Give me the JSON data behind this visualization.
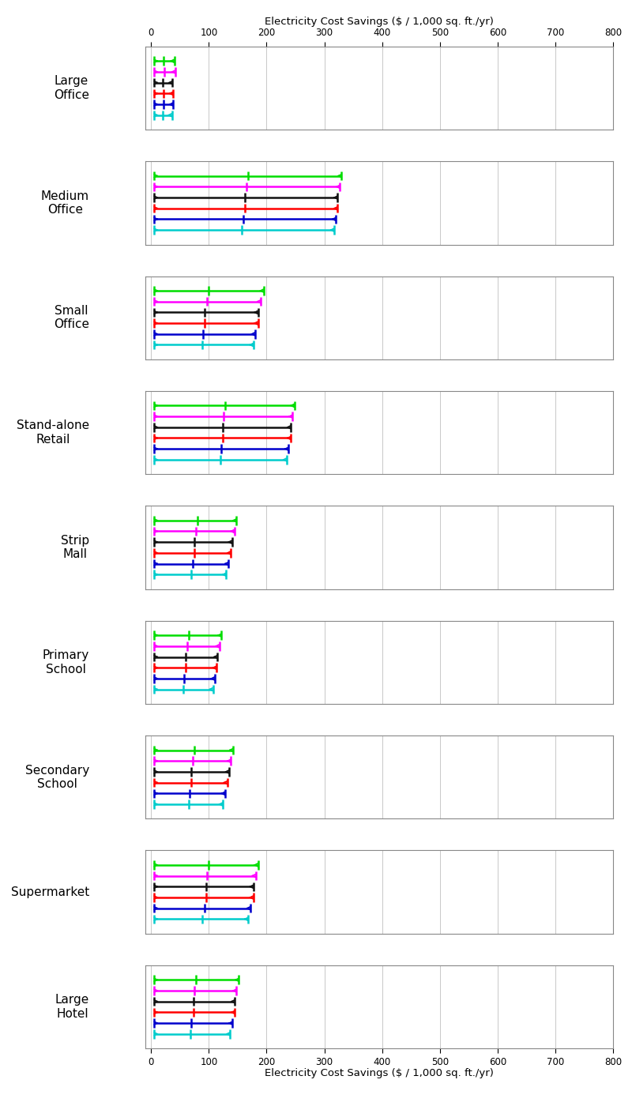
{
  "xlabel": "Electricity Cost Savings ($ / 1,000 sq. ft./yr)",
  "xlim": [
    -10,
    800
  ],
  "xticks": [
    0,
    100,
    200,
    300,
    400,
    500,
    600,
    700,
    800
  ],
  "xticklabels": [
    "0",
    "100",
    "200",
    "300",
    "400",
    "500",
    "600",
    "700",
    "800"
  ],
  "colors": [
    "#00dd00",
    "#ff00ff",
    "#111111",
    "#ff0000",
    "#0000cc",
    "#00cccc"
  ],
  "building_types": [
    "Large\nOffice",
    "Medium\nOffice",
    "Small\nOffice",
    "Stand-alone\nRetail",
    "Strip\nMall",
    "Primary\nSchool",
    "Secondary\nSchool",
    "Supermarket",
    "Large\nHotel"
  ],
  "series_data": [
    [
      [
        5,
        22,
        40
      ],
      [
        5,
        23,
        42
      ],
      [
        5,
        20,
        37
      ],
      [
        5,
        21,
        38
      ],
      [
        5,
        21,
        38
      ],
      [
        5,
        20,
        36
      ]
    ],
    [
      [
        5,
        168,
        330
      ],
      [
        5,
        165,
        327
      ],
      [
        5,
        162,
        323
      ],
      [
        5,
        162,
        323
      ],
      [
        5,
        160,
        320
      ],
      [
        5,
        157,
        317
      ]
    ],
    [
      [
        5,
        100,
        195
      ],
      [
        5,
        97,
        190
      ],
      [
        5,
        93,
        185
      ],
      [
        5,
        93,
        185
      ],
      [
        5,
        90,
        180
      ],
      [
        5,
        88,
        177
      ]
    ],
    [
      [
        5,
        128,
        248
      ],
      [
        5,
        126,
        245
      ],
      [
        5,
        124,
        242
      ],
      [
        5,
        124,
        242
      ],
      [
        5,
        122,
        238
      ],
      [
        5,
        120,
        235
      ]
    ],
    [
      [
        5,
        80,
        148
      ],
      [
        5,
        78,
        144
      ],
      [
        5,
        75,
        140
      ],
      [
        5,
        75,
        138
      ],
      [
        5,
        72,
        134
      ],
      [
        5,
        70,
        130
      ]
    ],
    [
      [
        5,
        65,
        122
      ],
      [
        5,
        62,
        118
      ],
      [
        5,
        60,
        115
      ],
      [
        5,
        60,
        113
      ],
      [
        5,
        57,
        110
      ],
      [
        5,
        55,
        107
      ]
    ],
    [
      [
        5,
        75,
        142
      ],
      [
        5,
        72,
        138
      ],
      [
        5,
        70,
        135
      ],
      [
        5,
        70,
        132
      ],
      [
        5,
        67,
        128
      ],
      [
        5,
        65,
        124
      ]
    ],
    [
      [
        5,
        100,
        185
      ],
      [
        5,
        97,
        181
      ],
      [
        5,
        95,
        177
      ],
      [
        5,
        95,
        177
      ],
      [
        5,
        92,
        172
      ],
      [
        5,
        89,
        168
      ]
    ],
    [
      [
        5,
        78,
        152
      ],
      [
        5,
        75,
        148
      ],
      [
        5,
        73,
        145
      ],
      [
        5,
        73,
        145
      ],
      [
        5,
        70,
        141
      ],
      [
        5,
        68,
        137
      ]
    ]
  ]
}
